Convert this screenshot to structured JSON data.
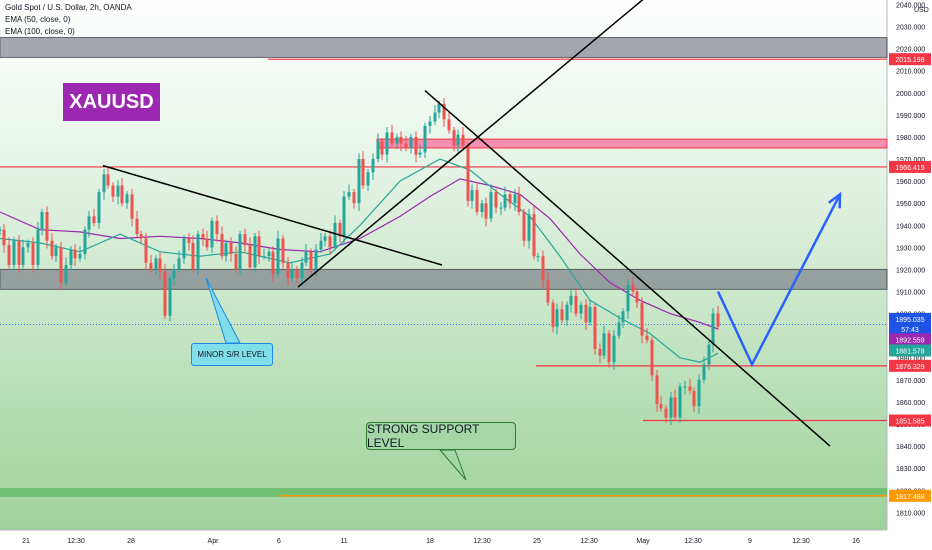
{
  "header": {
    "symbol_line": "Gold Spot / U.S. Dollar, 2h, OANDA",
    "indicator1": "EMA (50, close, 0)",
    "indicator2": "EMA (100, close, 0)",
    "currency": "USD"
  },
  "annotations": {
    "symbol_badge": "XAUUSD",
    "minor_level": "MINOR S/R LEVEL",
    "strong_level": "STRONG SUPPORT LEVEL"
  },
  "colors": {
    "candle_up": "#26a69a",
    "candle_down": "#ef5350",
    "ema50": "#26a69a",
    "ema100": "#9c27b0",
    "level_line": "#f23645",
    "projection": "#2962ff",
    "support_zone": "#66bb6a",
    "resistance_zone": "#787b86",
    "badge": "#9c27b0",
    "support_line": "#ff9800"
  },
  "chart_data": {
    "type": "candlestick",
    "title": "Gold Spot / U.S. Dollar, 2h, OANDA",
    "ylim": [
      1802,
      2042
    ],
    "y_ticks": [
      1810,
      1820,
      1830,
      1840,
      1850,
      1860,
      1870,
      1880,
      1890,
      1900,
      1910,
      1920,
      1930,
      1940,
      1950,
      1960,
      1970,
      1980,
      1990,
      2000,
      2010,
      2020,
      2030,
      2040
    ],
    "x_ticks": [
      "21",
      "12:30",
      "28",
      "Apr",
      "6",
      "11",
      "18",
      "12:30",
      "25",
      "12:30",
      "May",
      "12:30",
      "9",
      "12:30",
      "16"
    ],
    "price_path": [
      [
        0,
        1938
      ],
      [
        4,
        1931
      ],
      [
        9,
        1922
      ],
      [
        14,
        1933
      ],
      [
        19,
        1922
      ],
      [
        23,
        1930
      ],
      [
        28,
        1932
      ],
      [
        33,
        1922
      ],
      [
        38,
        1938
      ],
      [
        42,
        1946
      ],
      [
        47,
        1933
      ],
      [
        52,
        1926
      ],
      [
        56,
        1930
      ],
      [
        61,
        1914
      ],
      [
        66,
        1922
      ],
      [
        71,
        1929
      ],
      [
        75,
        1925
      ],
      [
        80,
        1927
      ],
      [
        85,
        1938
      ],
      [
        89,
        1944
      ],
      [
        94,
        1941
      ],
      [
        99,
        1955
      ],
      [
        104,
        1963
      ],
      [
        108,
        1958
      ],
      [
        113,
        1953
      ],
      [
        118,
        1958
      ],
      [
        122,
        1950
      ],
      [
        127,
        1954
      ],
      [
        132,
        1943
      ],
      [
        137,
        1936
      ],
      [
        141,
        1934
      ],
      [
        146,
        1923
      ],
      [
        151,
        1920
      ],
      [
        156,
        1925
      ],
      [
        160,
        1919
      ],
      [
        165,
        1899
      ],
      [
        170,
        1916
      ],
      [
        174,
        1920
      ],
      [
        179,
        1925
      ],
      [
        184,
        1934
      ],
      [
        189,
        1932
      ],
      [
        193,
        1920
      ],
      [
        198,
        1936
      ],
      [
        203,
        1934
      ],
      [
        207,
        1930
      ],
      [
        212,
        1942
      ],
      [
        217,
        1936
      ],
      [
        222,
        1926
      ],
      [
        226,
        1932
      ],
      [
        231,
        1927
      ],
      [
        236,
        1920
      ],
      [
        240,
        1936
      ],
      [
        245,
        1931
      ],
      [
        250,
        1921
      ],
      [
        255,
        1935
      ],
      [
        259,
        1926
      ],
      [
        264,
        1926
      ],
      [
        269,
        1928
      ],
      [
        273,
        1918
      ],
      [
        278,
        1934
      ],
      [
        283,
        1923
      ],
      [
        288,
        1916
      ],
      [
        292,
        1920
      ],
      [
        297,
        1916
      ],
      [
        302,
        1923
      ],
      [
        306,
        1928
      ],
      [
        311,
        1920
      ],
      [
        316,
        1929
      ],
      [
        321,
        1933
      ],
      [
        325,
        1935
      ],
      [
        330,
        1930
      ],
      [
        335,
        1941
      ],
      [
        340,
        1935
      ],
      [
        344,
        1953
      ],
      [
        349,
        1955
      ],
      [
        354,
        1950
      ],
      [
        359,
        1970
      ],
      [
        363,
        1958
      ],
      [
        368,
        1964
      ],
      [
        373,
        1970
      ],
      [
        378,
        1978
      ],
      [
        382,
        1972
      ],
      [
        387,
        1982
      ],
      [
        392,
        1977
      ],
      [
        397,
        1980
      ],
      [
        401,
        1977
      ],
      [
        406,
        1975
      ],
      [
        411,
        1980
      ],
      [
        416,
        1972
      ],
      [
        420,
        1973
      ],
      [
        425,
        1985
      ],
      [
        430,
        1987
      ],
      [
        435,
        1991
      ],
      [
        439,
        1995
      ],
      [
        444,
        1988
      ],
      [
        449,
        1983
      ],
      [
        454,
        1976
      ],
      [
        458,
        1981
      ],
      [
        463,
        1976
      ],
      [
        468,
        1951
      ],
      [
        472,
        1956
      ],
      [
        477,
        1946
      ],
      [
        482,
        1950
      ],
      [
        486,
        1943
      ],
      [
        491,
        1955
      ],
      [
        496,
        1948
      ],
      [
        501,
        1948
      ],
      [
        505,
        1954
      ],
      [
        510,
        1950
      ],
      [
        515,
        1954
      ],
      [
        519,
        1946
      ],
      [
        524,
        1933
      ],
      [
        529,
        1945
      ],
      [
        534,
        1926
      ],
      [
        538,
        1926
      ],
      [
        543,
        1915
      ],
      [
        548,
        1905
      ],
      [
        553,
        1894
      ],
      [
        557,
        1902
      ],
      [
        562,
        1897
      ],
      [
        567,
        1904
      ],
      [
        571,
        1908
      ],
      [
        576,
        1900
      ],
      [
        581,
        1904
      ],
      [
        586,
        1896
      ],
      [
        590,
        1903
      ],
      [
        595,
        1884
      ],
      [
        600,
        1881
      ],
      [
        604,
        1891
      ],
      [
        609,
        1878
      ],
      [
        614,
        1890
      ],
      [
        619,
        1896
      ],
      [
        623,
        1901
      ],
      [
        628,
        1913
      ],
      [
        633,
        1910
      ],
      [
        637,
        1905
      ],
      [
        642,
        1890
      ],
      [
        647,
        1888
      ],
      [
        652,
        1872
      ],
      [
        657,
        1859
      ],
      [
        661,
        1857
      ],
      [
        666,
        1853
      ],
      [
        671,
        1862
      ],
      [
        675,
        1853
      ],
      [
        680,
        1867
      ],
      [
        685,
        1867
      ],
      [
        690,
        1865
      ],
      [
        694,
        1858
      ],
      [
        699,
        1870
      ],
      [
        704,
        1877
      ],
      [
        709,
        1886
      ],
      [
        713,
        1900
      ],
      [
        718,
        1894
      ]
    ],
    "ema50_path": [
      [
        0,
        1934
      ],
      [
        40,
        1932
      ],
      [
        80,
        1928
      ],
      [
        120,
        1936
      ],
      [
        160,
        1928
      ],
      [
        200,
        1926
      ],
      [
        240,
        1928
      ],
      [
        290,
        1923
      ],
      [
        330,
        1927
      ],
      [
        360,
        1940
      ],
      [
        400,
        1960
      ],
      [
        440,
        1970
      ],
      [
        470,
        1965
      ],
      [
        500,
        1954
      ],
      [
        530,
        1944
      ],
      [
        560,
        1926
      ],
      [
        590,
        1906
      ],
      [
        620,
        1898
      ],
      [
        650,
        1891
      ],
      [
        680,
        1880
      ],
      [
        700,
        1878
      ],
      [
        718,
        1882
      ]
    ],
    "ema100_path": [
      [
        0,
        1946
      ],
      [
        40,
        1938
      ],
      [
        80,
        1937
      ],
      [
        120,
        1934
      ],
      [
        160,
        1935
      ],
      [
        200,
        1934
      ],
      [
        240,
        1932
      ],
      [
        280,
        1929
      ],
      [
        320,
        1928
      ],
      [
        360,
        1934
      ],
      [
        400,
        1944
      ],
      [
        430,
        1953
      ],
      [
        460,
        1961
      ],
      [
        490,
        1958
      ],
      [
        520,
        1954
      ],
      [
        550,
        1943
      ],
      [
        580,
        1927
      ],
      [
        610,
        1914
      ],
      [
        640,
        1906
      ],
      [
        670,
        1900
      ],
      [
        700,
        1896
      ],
      [
        718,
        1893
      ]
    ],
    "trendlines": [
      {
        "x1": 103,
        "y1": 1967,
        "x2": 442,
        "y2": 1922
      },
      {
        "x1": 298,
        "y1": 1912,
        "x2": 645,
        "y2": 2043
      },
      {
        "x1": 425,
        "y1": 2001,
        "x2": 830,
        "y2": 1840
      }
    ],
    "horizontal_lines": [
      {
        "price": 2015.198,
        "label": "2015.198",
        "x_start": 268
      },
      {
        "price": 1966.415,
        "label": "1966.415",
        "x_start": 0
      },
      {
        "price": 1876.329,
        "label": "1876.329",
        "x_start": 536
      },
      {
        "price": 1851.585,
        "label": "1851.585",
        "x_start": 643
      }
    ],
    "zones": [
      {
        "kind": "resistance",
        "from": 2016,
        "to": 2025
      },
      {
        "kind": "resistance",
        "from": 1911,
        "to": 1920
      },
      {
        "kind": "resistance",
        "from": 1975,
        "to": 1979
      },
      {
        "kind": "support",
        "from": 1817,
        "to": 1821
      }
    ],
    "support_line_price": 1817.488,
    "projection": [
      [
        718,
        1910
      ],
      [
        752,
        1877
      ],
      [
        840,
        1954
      ]
    ],
    "price_labels": [
      {
        "value": "2015.198",
        "price": 2015.198,
        "color": "#f23645"
      },
      {
        "value": "1966.415",
        "price": 1966.415,
        "color": "#f23645"
      },
      {
        "value": "1895.035",
        "price": 1897.6,
        "color": "#1e53e5"
      },
      {
        "value": "57:43",
        "price": 1893.0,
        "color": "#1e53e5"
      },
      {
        "value": "1892.559",
        "price": 1888.3,
        "color": "#9c27b0"
      },
      {
        "value": "1881.578",
        "price": 1883.3,
        "color": "#26a69a"
      },
      {
        "value": "1876.329",
        "price": 1876.329,
        "color": "#f23645"
      },
      {
        "value": "1851.585",
        "price": 1851.585,
        "color": "#f23645"
      },
      {
        "value": "1817.488",
        "price": 1817.488,
        "color": "#ff9800"
      }
    ]
  }
}
